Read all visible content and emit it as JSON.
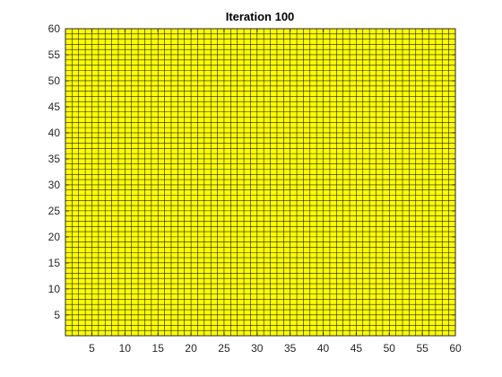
{
  "chart_data": {
    "type": "heatmap",
    "title": "Iteration 100",
    "xlabel": "",
    "ylabel": "",
    "xlim": [
      1,
      60
    ],
    "ylim": [
      1,
      60
    ],
    "grid_size": [
      59,
      59
    ],
    "cell_value": 1,
    "cell_color": "#ffff00",
    "edge_color": "#1a1a1a",
    "background_color": "#ffffff",
    "x_ticks": [
      5,
      10,
      15,
      20,
      25,
      30,
      35,
      40,
      45,
      50,
      55,
      60
    ],
    "y_ticks": [
      5,
      10,
      15,
      20,
      25,
      30,
      35,
      40,
      45,
      50,
      55,
      60
    ],
    "grid": true,
    "legend": "none"
  }
}
